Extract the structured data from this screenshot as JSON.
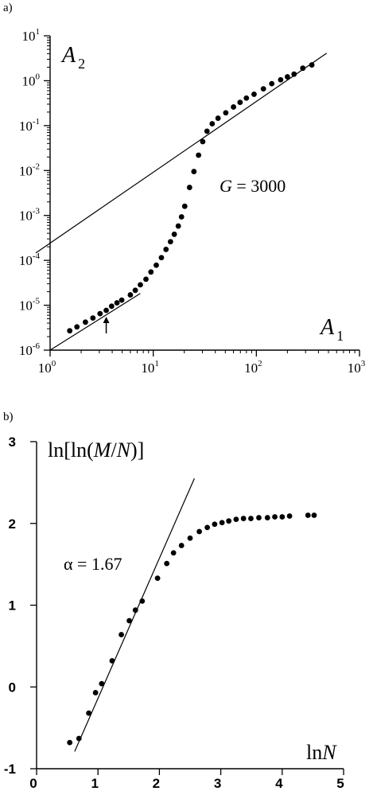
{
  "chart_data": [
    {
      "type": "scatter",
      "panel_label": "a)",
      "x_scale": "log",
      "y_scale": "log",
      "xlim": [
        1,
        1000
      ],
      "ylim": [
        1e-06,
        10
      ],
      "x_ticks": [
        1,
        10,
        100,
        1000
      ],
      "y_ticks": [
        1e-06,
        1e-05,
        0.0001,
        0.001,
        0.01,
        0.1,
        1,
        10
      ],
      "x_tick_labels": [
        {
          "base": "10",
          "exp": "0"
        },
        {
          "base": "10",
          "exp": "1"
        },
        {
          "base": "10",
          "exp": "2"
        },
        {
          "base": "10",
          "exp": "3"
        }
      ],
      "y_tick_labels": [
        {
          "base": "10",
          "exp": "-6"
        },
        {
          "base": "10",
          "exp": "-5"
        },
        {
          "base": "10",
          "exp": "-4"
        },
        {
          "base": "10",
          "exp": "-3"
        },
        {
          "base": "10",
          "exp": "-2"
        },
        {
          "base": "10",
          "exp": "-1"
        },
        {
          "base": "10",
          "exp": "0"
        },
        {
          "base": "10",
          "exp": "1"
        }
      ],
      "xlabel": {
        "main": "A",
        "sub": "1"
      },
      "ylabel": {
        "main": "A",
        "sub": "2"
      },
      "annotation": {
        "var": "G",
        "text": " = 3000"
      },
      "arrow_at_x": 3.5,
      "points": [
        [
          1.55,
          2.7e-06
        ],
        [
          1.82,
          3.3e-06
        ],
        [
          2.2,
          4.2e-06
        ],
        [
          2.6,
          5.2e-06
        ],
        [
          3.05,
          6.5e-06
        ],
        [
          3.5,
          7.7e-06
        ],
        [
          3.95,
          9.5e-06
        ],
        [
          4.45,
          1.13e-05
        ],
        [
          4.95,
          1.3e-05
        ],
        [
          6.0,
          1.7e-05
        ],
        [
          6.7,
          2.15e-05
        ],
        [
          7.5,
          2.85e-05
        ],
        [
          8.5,
          3.8e-05
        ],
        [
          9.5,
          5.5e-05
        ],
        [
          10.7,
          7.8e-05
        ],
        [
          12.0,
          0.000115
        ],
        [
          13.3,
          0.000175
        ],
        [
          14.7,
          0.00026
        ],
        [
          16.0,
          0.00038
        ],
        [
          17.5,
          0.00058
        ],
        [
          18.8,
          0.00093
        ],
        [
          20.2,
          0.0016
        ],
        [
          22.5,
          0.0042
        ],
        [
          24.8,
          0.0095
        ],
        [
          27.5,
          0.022
        ],
        [
          30.2,
          0.044
        ],
        [
          33.2,
          0.075
        ],
        [
          37.3,
          0.11
        ],
        [
          42.5,
          0.146
        ],
        [
          50.5,
          0.193
        ],
        [
          60.0,
          0.26
        ],
        [
          69.5,
          0.33
        ],
        [
          80.0,
          0.41
        ],
        [
          95.0,
          0.5
        ],
        [
          117.0,
          0.66
        ],
        [
          141.0,
          0.86
        ],
        [
          172.0,
          1.05
        ],
        [
          200.0,
          1.22
        ],
        [
          232.0,
          1.4
        ],
        [
          282.0,
          1.9
        ],
        [
          345.0,
          2.25
        ]
      ],
      "lines": [
        {
          "from": [
            1,
            1e-06
          ],
          "to": [
            7.5,
            1.83e-05
          ]
        },
        {
          "from": [
            1,
            0.00022
          ],
          "to": [
            480,
            4.1
          ]
        }
      ]
    },
    {
      "type": "scatter",
      "panel_label": "b)",
      "xlim": [
        0,
        5
      ],
      "ylim": [
        -1,
        3
      ],
      "x_ticks": [
        0,
        1,
        2,
        3,
        4,
        5
      ],
      "y_ticks": [
        -1,
        0,
        1,
        2,
        3
      ],
      "x_tick_labels": [
        "0",
        "1",
        "2",
        "3",
        "4",
        "5"
      ],
      "y_tick_labels": [
        "-1",
        "0",
        "1",
        "2",
        "3"
      ],
      "xlabel": {
        "pre": "ln",
        "var": "N"
      },
      "ylabel": {
        "pre": "ln[ln(",
        "var1": "M",
        "mid": "/",
        "var2": "N",
        "post": ")]"
      },
      "annotation": {
        "sym": "α",
        "text": " = 1.67"
      },
      "points": [
        [
          0.54,
          -0.68
        ],
        [
          0.69,
          -0.63
        ],
        [
          0.85,
          -0.32
        ],
        [
          0.96,
          -0.07
        ],
        [
          1.06,
          0.04
        ],
        [
          1.23,
          0.32
        ],
        [
          1.38,
          0.64
        ],
        [
          1.51,
          0.81
        ],
        [
          1.61,
          0.94
        ],
        [
          1.72,
          1.05
        ],
        [
          1.97,
          1.33
        ],
        [
          2.12,
          1.51
        ],
        [
          2.23,
          1.64
        ],
        [
          2.36,
          1.73
        ],
        [
          2.5,
          1.82
        ],
        [
          2.65,
          1.9
        ],
        [
          2.78,
          1.95
        ],
        [
          2.9,
          1.99
        ],
        [
          3.02,
          2.01
        ],
        [
          3.13,
          2.03
        ],
        [
          3.25,
          2.05
        ],
        [
          3.37,
          2.06
        ],
        [
          3.49,
          2.06
        ],
        [
          3.62,
          2.07
        ],
        [
          3.76,
          2.07
        ],
        [
          3.88,
          2.08
        ],
        [
          4.0,
          2.08
        ],
        [
          4.12,
          2.09
        ],
        [
          4.42,
          2.1
        ],
        [
          4.52,
          2.1
        ]
      ],
      "fit_line": {
        "from": [
          0.62,
          -0.79
        ],
        "to": [
          2.57,
          2.55
        ]
      }
    }
  ]
}
